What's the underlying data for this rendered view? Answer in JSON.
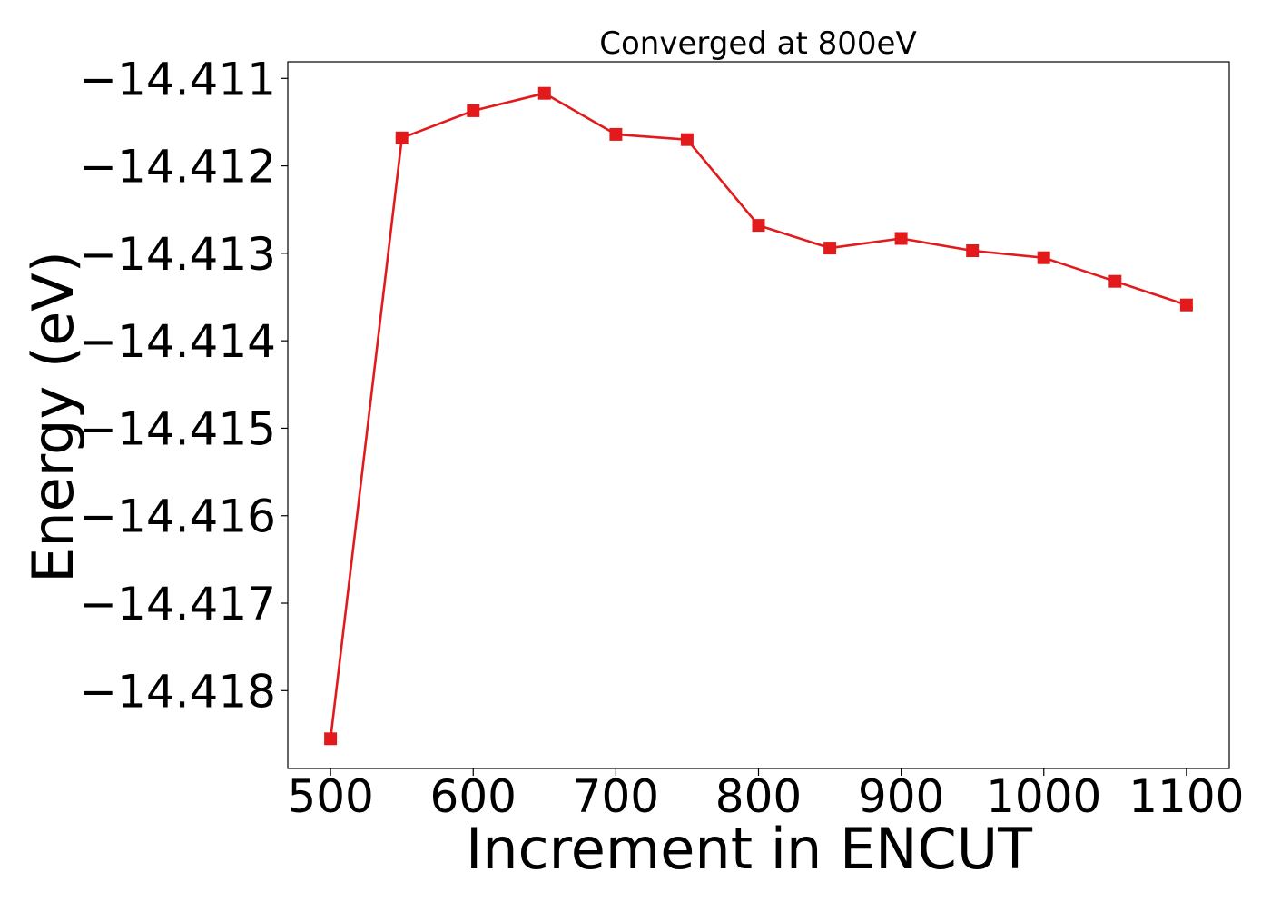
{
  "chart_data": {
    "type": "line",
    "title": "Converged at 800eV",
    "xlabel": "Increment in ENCUT",
    "ylabel": "Energy (eV)",
    "x": [
      500,
      550,
      600,
      650,
      700,
      750,
      800,
      850,
      900,
      950,
      1000,
      1050,
      1100
    ],
    "series": [
      {
        "values": [
          -14.41855,
          -14.41168,
          -14.41137,
          -14.41117,
          -14.41164,
          -14.4117,
          -14.41268,
          -14.41294,
          -14.41283,
          -14.41297,
          -14.41305,
          -14.41332,
          -14.41359
        ],
        "color": "#e31a1c",
        "marker": "square"
      }
    ],
    "xlim": [
      470,
      1130
    ],
    "ylim": [
      -14.41889,
      -14.41081
    ],
    "xticks": [
      500,
      600,
      700,
      800,
      900,
      1000,
      1100
    ],
    "xtick_labels": [
      "500",
      "600",
      "700",
      "800",
      "900",
      "1000",
      "1100"
    ],
    "yticks": [
      -14.411,
      -14.412,
      -14.413,
      -14.414,
      -14.415,
      -14.416,
      -14.417,
      -14.418
    ],
    "ytick_labels": [
      "−14.411",
      "−14.412",
      "−14.413",
      "−14.414",
      "−14.415",
      "−14.416",
      "−14.417",
      "−14.418"
    ],
    "grid": false,
    "legend": false
  }
}
